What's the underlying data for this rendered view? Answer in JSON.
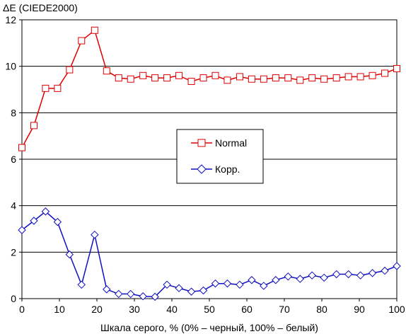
{
  "chart_data": {
    "type": "line",
    "ylabel": "ΔE (CIEDE2000)",
    "xlabel": "Шкала серого, % (0% – черный, 100% – белый)",
    "xlim": [
      0,
      100
    ],
    "ylim": [
      0,
      12
    ],
    "x_ticks": [
      0,
      10,
      20,
      30,
      40,
      50,
      60,
      70,
      80,
      90,
      100
    ],
    "y_ticks": [
      0,
      2,
      4,
      6,
      8,
      10,
      12
    ],
    "grid": "horizontal",
    "legend_position": "center",
    "x": [
      0,
      3.2,
      6.3,
      9.5,
      12.7,
      15.9,
      19.4,
      22.6,
      25.8,
      29.0,
      32.3,
      35.5,
      38.7,
      41.9,
      45.2,
      48.4,
      51.6,
      54.8,
      58.1,
      61.3,
      64.5,
      67.7,
      71.0,
      74.2,
      77.4,
      80.6,
      83.9,
      87.1,
      90.3,
      93.5,
      96.8,
      100
    ],
    "series": [
      {
        "name": "Normal",
        "color": "#e00000",
        "marker": "square",
        "values": [
          6.5,
          7.45,
          9.05,
          9.05,
          9.85,
          11.1,
          11.55,
          9.8,
          9.5,
          9.45,
          9.6,
          9.5,
          9.5,
          9.6,
          9.35,
          9.5,
          9.6,
          9.4,
          9.55,
          9.45,
          9.45,
          9.5,
          9.5,
          9.4,
          9.5,
          9.45,
          9.5,
          9.55,
          9.55,
          9.6,
          9.7,
          9.9
        ]
      },
      {
        "name": "Корр.",
        "color": "#1010c0",
        "marker": "diamond",
        "values": [
          2.95,
          3.35,
          3.75,
          3.3,
          1.9,
          0.6,
          2.75,
          0.4,
          0.2,
          0.2,
          0.1,
          0.08,
          0.6,
          0.45,
          0.3,
          0.35,
          0.65,
          0.65,
          0.6,
          0.8,
          0.55,
          0.8,
          0.95,
          0.85,
          1.0,
          0.9,
          1.05,
          1.05,
          1.0,
          1.1,
          1.2,
          1.4
        ]
      }
    ]
  }
}
